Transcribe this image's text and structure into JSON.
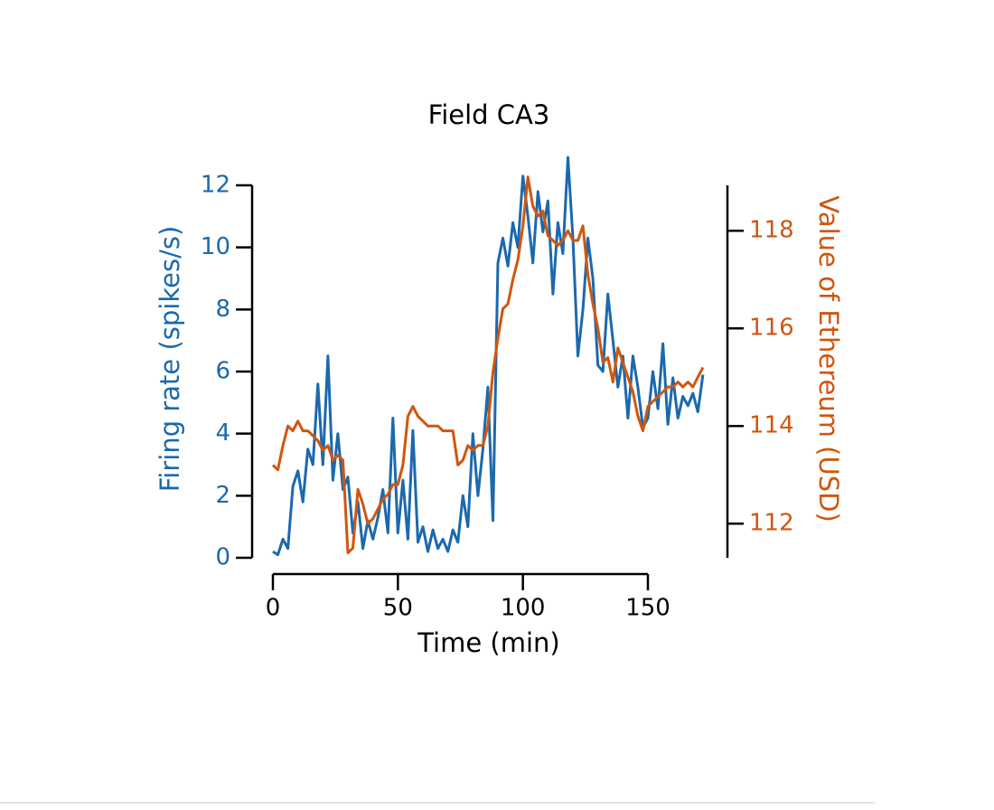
{
  "chart_data": {
    "type": "line",
    "title": "Field CA3",
    "xlabel": "Time (min)",
    "ylabel": "Firing rate (spikes/s)",
    "y2label": "Value of Ethereum (USD)",
    "x": [
      0,
      2,
      4,
      6,
      8,
      10,
      12,
      14,
      16,
      18,
      20,
      22,
      24,
      26,
      28,
      30,
      32,
      34,
      36,
      38,
      40,
      42,
      44,
      46,
      48,
      50,
      52,
      54,
      56,
      58,
      60,
      62,
      64,
      66,
      68,
      70,
      72,
      74,
      76,
      78,
      80,
      82,
      84,
      86,
      88,
      90,
      92,
      94,
      96,
      98,
      100,
      102,
      104,
      106,
      108,
      110,
      112,
      114,
      116,
      118,
      120,
      122,
      124,
      126,
      128,
      130,
      132,
      134,
      136,
      138,
      140,
      142,
      144,
      146,
      148,
      150,
      152,
      154,
      156,
      158,
      160,
      162,
      164,
      166,
      168,
      170,
      172
    ],
    "series": [
      {
        "name": "Firing rate",
        "color": "#1b69ad",
        "values": [
          0.2,
          0.1,
          0.6,
          0.3,
          2.3,
          2.8,
          1.8,
          3.5,
          3.0,
          5.6,
          3.0,
          6.5,
          2.5,
          4.0,
          2.2,
          2.6,
          0.8,
          1.8,
          0.3,
          1.2,
          0.6,
          1.3,
          2.2,
          0.8,
          4.5,
          0.8,
          2.5,
          0.6,
          4.1,
          0.5,
          1.0,
          0.2,
          0.9,
          0.3,
          0.6,
          0.2,
          0.9,
          0.5,
          2.0,
          1.0,
          4.0,
          2.0,
          3.5,
          5.5,
          1.2,
          9.5,
          10.3,
          9.4,
          10.8,
          10.0,
          12.3,
          11.0,
          9.5,
          11.8,
          10.5,
          11.5,
          8.5,
          10.8,
          9.8,
          12.9,
          10.3,
          6.5,
          8.0,
          10.3,
          9.0,
          6.2,
          6.0,
          8.5,
          7.0,
          5.5,
          6.5,
          4.5,
          6.5,
          5.5,
          4.2,
          4.5,
          6.0,
          4.8,
          6.9,
          4.3,
          5.8,
          4.5,
          5.2,
          4.9,
          5.3,
          4.7,
          5.9
        ]
      },
      {
        "name": "Value of Ethereum",
        "color": "#d0560e",
        "axis": "y2",
        "values": [
          113.2,
          113.1,
          113.6,
          114.0,
          113.9,
          114.1,
          113.9,
          113.9,
          113.8,
          113.7,
          113.5,
          113.6,
          113.3,
          113.4,
          113.3,
          111.4,
          111.5,
          112.7,
          112.4,
          112.0,
          112.1,
          112.3,
          112.5,
          112.6,
          112.8,
          112.8,
          113.2,
          114.2,
          114.4,
          114.2,
          114.1,
          114.0,
          114.0,
          114.0,
          113.9,
          113.9,
          113.9,
          113.2,
          113.3,
          113.6,
          113.5,
          113.6,
          113.6,
          114.0,
          115.1,
          115.8,
          116.4,
          116.5,
          117.0,
          117.4,
          118.1,
          119.1,
          118.5,
          118.3,
          118.4,
          117.9,
          117.8,
          117.7,
          117.8,
          118.0,
          117.8,
          117.8,
          118.1,
          117.1,
          116.5,
          116.0,
          115.3,
          115.4,
          114.9,
          115.6,
          115.3,
          115.0,
          114.7,
          114.2,
          113.9,
          114.4,
          114.5,
          114.6,
          114.7,
          114.8,
          114.8,
          114.9,
          114.8,
          114.9,
          114.8,
          115.0,
          115.2
        ]
      }
    ],
    "xlim": [
      0,
      150
    ],
    "xticks": [
      0,
      50,
      100,
      150
    ],
    "ylim": [
      0,
      12
    ],
    "yticks": [
      0,
      2,
      4,
      6,
      8,
      10,
      12
    ],
    "y2lim": [
      111.3,
      118.93
    ],
    "y2ticks": [
      112,
      114,
      116,
      118
    ]
  }
}
